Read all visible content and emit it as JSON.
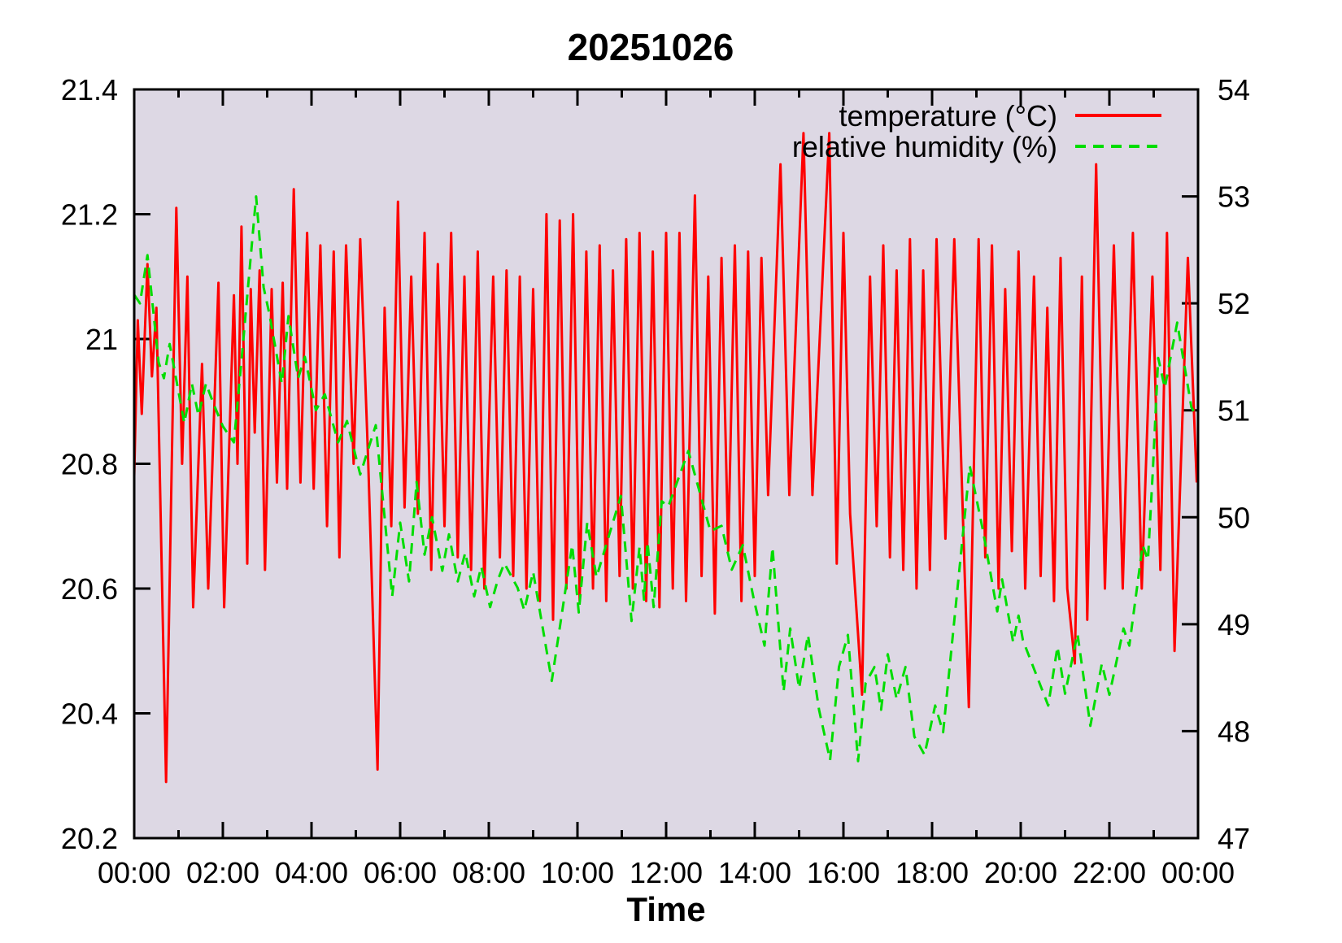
{
  "figure": {
    "title": "20251026",
    "x_axis_title": "Time"
  },
  "colors": {
    "page_background": "#ffffff",
    "plot_background": "#ddd8e4",
    "axis": "#000000",
    "temperature_line": "#ff0000",
    "humidity_line": "#00dd00"
  },
  "legend": {
    "position": "top-right-inside",
    "items": [
      {
        "label": "temperature (°C)",
        "color": "#ff0000",
        "style": "solid"
      },
      {
        "label": "relative humidity (%)",
        "color": "#00dd00",
        "style": "dashed"
      }
    ]
  },
  "chart_data": {
    "type": "line",
    "title": "20251026",
    "xlabel": "Time",
    "x_unit": "hours",
    "xlim": [
      0,
      24
    ],
    "x_major_tick_hours": [
      0,
      2,
      4,
      6,
      8,
      10,
      12,
      14,
      16,
      18,
      20,
      22,
      24
    ],
    "x_tick_labels": [
      "00:00",
      "02:00",
      "04:00",
      "06:00",
      "08:00",
      "10:00",
      "12:00",
      "14:00",
      "16:00",
      "18:00",
      "20:00",
      "22:00",
      "00:00"
    ],
    "x_minor_tick_every_hours": 1,
    "grid": false,
    "legend_position": "top-right",
    "y_left": {
      "range": [
        20.2,
        21.4
      ],
      "tick_labels": [
        "20.2",
        "20.4",
        "20.6",
        "20.8",
        "21",
        "21.2",
        "21.4"
      ]
    },
    "y_right": {
      "range": [
        47,
        54
      ],
      "tick_labels": [
        "47",
        "48",
        "49",
        "50",
        "51",
        "52",
        "53",
        "54"
      ]
    },
    "series": [
      {
        "name": "temperature (°C)",
        "axis": "left",
        "color": "#ff0000",
        "style": "solid",
        "points": [
          [
            0.0,
            20.78
          ],
          [
            0.08,
            21.03
          ],
          [
            0.17,
            20.88
          ],
          [
            0.3,
            21.12
          ],
          [
            0.4,
            20.94
          ],
          [
            0.5,
            21.05
          ],
          [
            0.72,
            20.29
          ],
          [
            0.95,
            21.21
          ],
          [
            1.08,
            20.8
          ],
          [
            1.2,
            21.1
          ],
          [
            1.33,
            20.57
          ],
          [
            1.53,
            20.96
          ],
          [
            1.67,
            20.6
          ],
          [
            1.9,
            21.09
          ],
          [
            2.03,
            20.57
          ],
          [
            2.25,
            21.07
          ],
          [
            2.33,
            20.8
          ],
          [
            2.42,
            21.18
          ],
          [
            2.55,
            20.64
          ],
          [
            2.63,
            21.08
          ],
          [
            2.72,
            20.85
          ],
          [
            2.83,
            21.11
          ],
          [
            2.95,
            20.63
          ],
          [
            3.1,
            21.08
          ],
          [
            3.22,
            20.77
          ],
          [
            3.35,
            21.09
          ],
          [
            3.45,
            20.76
          ],
          [
            3.6,
            21.24
          ],
          [
            3.75,
            20.77
          ],
          [
            3.9,
            21.17
          ],
          [
            4.05,
            20.76
          ],
          [
            4.2,
            21.15
          ],
          [
            4.35,
            20.7
          ],
          [
            4.5,
            21.14
          ],
          [
            4.63,
            20.65
          ],
          [
            4.78,
            21.15
          ],
          [
            4.95,
            20.8
          ],
          [
            5.1,
            21.16
          ],
          [
            5.28,
            20.8
          ],
          [
            5.49,
            20.31
          ],
          [
            5.65,
            21.05
          ],
          [
            5.8,
            20.7
          ],
          [
            5.95,
            21.22
          ],
          [
            6.1,
            20.73
          ],
          [
            6.25,
            21.1
          ],
          [
            6.4,
            20.72
          ],
          [
            6.55,
            21.17
          ],
          [
            6.7,
            20.63
          ],
          [
            6.85,
            21.12
          ],
          [
            7.0,
            20.7
          ],
          [
            7.15,
            21.17
          ],
          [
            7.3,
            20.65
          ],
          [
            7.45,
            21.1
          ],
          [
            7.6,
            20.63
          ],
          [
            7.75,
            21.14
          ],
          [
            7.9,
            20.6
          ],
          [
            8.1,
            21.1
          ],
          [
            8.25,
            20.65
          ],
          [
            8.4,
            21.11
          ],
          [
            8.55,
            20.62
          ],
          [
            8.7,
            21.1
          ],
          [
            8.85,
            20.6
          ],
          [
            9.0,
            21.08
          ],
          [
            9.15,
            20.58
          ],
          [
            9.3,
            21.2
          ],
          [
            9.45,
            20.55
          ],
          [
            9.6,
            21.19
          ],
          [
            9.75,
            20.6
          ],
          [
            9.9,
            21.2
          ],
          [
            10.05,
            20.58
          ],
          [
            10.2,
            21.14
          ],
          [
            10.35,
            20.6
          ],
          [
            10.5,
            21.15
          ],
          [
            10.65,
            20.58
          ],
          [
            10.8,
            21.11
          ],
          [
            10.95,
            20.62
          ],
          [
            11.1,
            21.16
          ],
          [
            11.25,
            20.6
          ],
          [
            11.4,
            21.17
          ],
          [
            11.55,
            20.58
          ],
          [
            11.7,
            21.14
          ],
          [
            11.85,
            20.57
          ],
          [
            12.0,
            21.17
          ],
          [
            12.15,
            20.6
          ],
          [
            12.3,
            21.17
          ],
          [
            12.45,
            20.58
          ],
          [
            12.65,
            21.23
          ],
          [
            12.8,
            20.62
          ],
          [
            12.95,
            21.1
          ],
          [
            13.1,
            20.56
          ],
          [
            13.25,
            21.13
          ],
          [
            13.4,
            20.66
          ],
          [
            13.55,
            21.15
          ],
          [
            13.7,
            20.58
          ],
          [
            13.85,
            21.14
          ],
          [
            14.0,
            20.62
          ],
          [
            14.15,
            21.13
          ],
          [
            14.3,
            20.75
          ],
          [
            14.58,
            21.28
          ],
          [
            14.78,
            20.75
          ],
          [
            15.1,
            21.33
          ],
          [
            15.3,
            20.75
          ],
          [
            15.68,
            21.33
          ],
          [
            15.85,
            20.64
          ],
          [
            16.0,
            21.17
          ],
          [
            16.15,
            20.72
          ],
          [
            16.42,
            20.43
          ],
          [
            16.6,
            21.1
          ],
          [
            16.75,
            20.7
          ],
          [
            16.9,
            21.15
          ],
          [
            17.05,
            20.65
          ],
          [
            17.2,
            21.11
          ],
          [
            17.35,
            20.63
          ],
          [
            17.5,
            21.16
          ],
          [
            17.65,
            20.6
          ],
          [
            17.8,
            21.11
          ],
          [
            17.95,
            20.63
          ],
          [
            18.1,
            21.16
          ],
          [
            18.3,
            20.68
          ],
          [
            18.5,
            21.16
          ],
          [
            18.83,
            20.41
          ],
          [
            19.05,
            21.16
          ],
          [
            19.2,
            20.65
          ],
          [
            19.35,
            21.15
          ],
          [
            19.5,
            20.6
          ],
          [
            19.65,
            21.08
          ],
          [
            19.8,
            20.66
          ],
          [
            19.95,
            21.14
          ],
          [
            20.1,
            20.6
          ],
          [
            20.3,
            21.1
          ],
          [
            20.45,
            20.62
          ],
          [
            20.6,
            21.05
          ],
          [
            20.75,
            20.58
          ],
          [
            20.9,
            21.13
          ],
          [
            21.05,
            20.6
          ],
          [
            21.22,
            20.48
          ],
          [
            21.38,
            21.1
          ],
          [
            21.5,
            20.55
          ],
          [
            21.7,
            21.28
          ],
          [
            21.9,
            20.6
          ],
          [
            22.1,
            21.15
          ],
          [
            22.3,
            20.6
          ],
          [
            22.53,
            21.17
          ],
          [
            22.73,
            20.6
          ],
          [
            22.97,
            21.1
          ],
          [
            23.15,
            20.63
          ],
          [
            23.3,
            21.17
          ],
          [
            23.47,
            20.5
          ],
          [
            23.77,
            21.13
          ],
          [
            23.97,
            20.77
          ]
        ]
      },
      {
        "name": "relative humidity (%)",
        "axis": "right",
        "color": "#00dd00",
        "style": "dashed",
        "points": [
          [
            0.0,
            52.08
          ],
          [
            0.13,
            52.0
          ],
          [
            0.3,
            52.45
          ],
          [
            0.55,
            51.45
          ],
          [
            0.67,
            51.3
          ],
          [
            0.8,
            51.62
          ],
          [
            1.13,
            50.88
          ],
          [
            1.3,
            51.25
          ],
          [
            1.45,
            50.95
          ],
          [
            1.62,
            51.25
          ],
          [
            1.8,
            51.05
          ],
          [
            2.0,
            50.85
          ],
          [
            2.25,
            50.7
          ],
          [
            2.45,
            51.6
          ],
          [
            2.6,
            52.3
          ],
          [
            2.75,
            53.0
          ],
          [
            2.92,
            52.15
          ],
          [
            3.05,
            51.9
          ],
          [
            3.33,
            51.25
          ],
          [
            3.48,
            51.88
          ],
          [
            3.7,
            51.3
          ],
          [
            3.85,
            51.5
          ],
          [
            4.1,
            51.0
          ],
          [
            4.3,
            51.15
          ],
          [
            4.6,
            50.7
          ],
          [
            4.8,
            50.9
          ],
          [
            5.1,
            50.4
          ],
          [
            5.45,
            50.86
          ],
          [
            5.82,
            49.26
          ],
          [
            6.0,
            49.95
          ],
          [
            6.2,
            49.4
          ],
          [
            6.37,
            50.33
          ],
          [
            6.55,
            49.65
          ],
          [
            6.72,
            50.0
          ],
          [
            6.95,
            49.5
          ],
          [
            7.1,
            49.84
          ],
          [
            7.3,
            49.4
          ],
          [
            7.47,
            49.67
          ],
          [
            7.67,
            49.26
          ],
          [
            7.83,
            49.54
          ],
          [
            8.03,
            49.16
          ],
          [
            8.2,
            49.41
          ],
          [
            8.35,
            49.57
          ],
          [
            8.65,
            49.34
          ],
          [
            8.8,
            49.13
          ],
          [
            9.0,
            49.49
          ],
          [
            9.42,
            48.47
          ],
          [
            9.88,
            49.74
          ],
          [
            10.03,
            49.11
          ],
          [
            10.22,
            49.95
          ],
          [
            10.43,
            49.44
          ],
          [
            10.98,
            50.2
          ],
          [
            11.22,
            49.03
          ],
          [
            11.4,
            49.72
          ],
          [
            11.5,
            49.23
          ],
          [
            11.58,
            49.77
          ],
          [
            11.72,
            49.16
          ],
          [
            11.9,
            50.15
          ],
          [
            12.05,
            50.1
          ],
          [
            12.5,
            50.62
          ],
          [
            13.0,
            49.87
          ],
          [
            13.25,
            49.92
          ],
          [
            13.48,
            49.51
          ],
          [
            13.73,
            49.74
          ],
          [
            13.98,
            49.23
          ],
          [
            14.22,
            48.8
          ],
          [
            14.4,
            49.72
          ],
          [
            14.65,
            48.37
          ],
          [
            14.8,
            48.96
          ],
          [
            15.0,
            48.4
          ],
          [
            15.2,
            48.9
          ],
          [
            15.45,
            48.2
          ],
          [
            15.7,
            47.73
          ],
          [
            15.9,
            48.6
          ],
          [
            16.1,
            48.9
          ],
          [
            16.33,
            47.72
          ],
          [
            16.5,
            48.45
          ],
          [
            16.7,
            48.6
          ],
          [
            16.85,
            48.2
          ],
          [
            17.0,
            48.72
          ],
          [
            17.2,
            48.3
          ],
          [
            17.4,
            48.6
          ],
          [
            17.6,
            47.95
          ],
          [
            17.83,
            47.78
          ],
          [
            18.07,
            48.24
          ],
          [
            18.25,
            47.99
          ],
          [
            18.85,
            50.48
          ],
          [
            19.15,
            49.87
          ],
          [
            19.47,
            49.12
          ],
          [
            19.58,
            49.42
          ],
          [
            19.83,
            48.83
          ],
          [
            19.95,
            49.08
          ],
          [
            20.05,
            48.85
          ],
          [
            20.62,
            48.24
          ],
          [
            20.83,
            48.79
          ],
          [
            21.0,
            48.35
          ],
          [
            21.28,
            48.91
          ],
          [
            21.57,
            48.05
          ],
          [
            21.83,
            48.63
          ],
          [
            22.0,
            48.34
          ],
          [
            22.32,
            48.96
          ],
          [
            22.45,
            48.8
          ],
          [
            22.75,
            49.74
          ],
          [
            22.87,
            49.6
          ],
          [
            22.98,
            50.43
          ],
          [
            23.1,
            51.49
          ],
          [
            23.25,
            51.21
          ],
          [
            23.53,
            51.82
          ],
          [
            23.85,
            51.03
          ],
          [
            23.95,
            50.95
          ]
        ]
      }
    ]
  }
}
